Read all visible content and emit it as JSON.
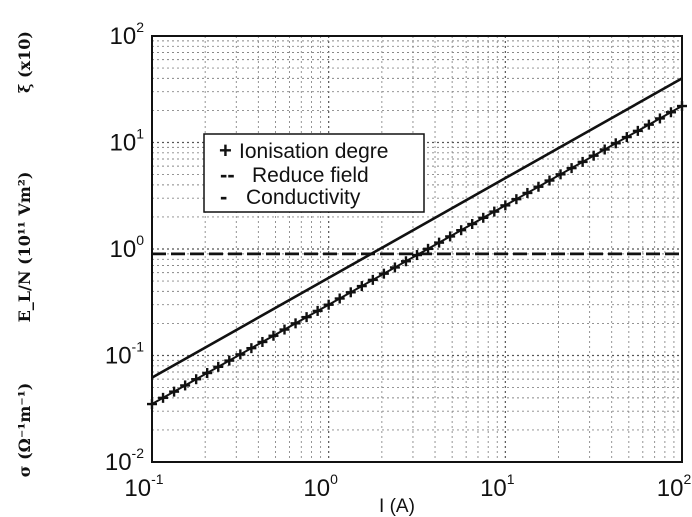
{
  "chart_data": {
    "type": "line",
    "xscale": "log",
    "yscale": "log",
    "xlim": [
      0.1,
      100
    ],
    "ylim": [
      0.01,
      100
    ],
    "grid": true,
    "legend_position": "upper-left inside",
    "xlabel": "I (A)",
    "ylabels": [
      "ξ (x10)",
      "E_L/N (10¹¹ Vm²)",
      "σ (Ω⁻¹m⁻¹)"
    ],
    "x_ticks": [
      {
        "base": "10",
        "exp": "-1"
      },
      {
        "base": "10",
        "exp": "0"
      },
      {
        "base": "10",
        "exp": "1"
      },
      {
        "base": "10",
        "exp": "2"
      }
    ],
    "y_ticks": [
      {
        "base": "10",
        "exp": "-2"
      },
      {
        "base": "10",
        "exp": "-1"
      },
      {
        "base": "10",
        "exp": "0"
      },
      {
        "base": "10",
        "exp": "1"
      },
      {
        "base": "10",
        "exp": "2"
      }
    ],
    "series": [
      {
        "name": "Ionisation degre",
        "style": "plus-markers",
        "x": [
          0.1,
          100
        ],
        "y": [
          0.035,
          22
        ]
      },
      {
        "name": "Reduce field",
        "style": "dashed",
        "x": [
          0.1,
          100
        ],
        "y": [
          0.9,
          0.9
        ]
      },
      {
        "name": "Conductivity",
        "style": "solid",
        "x": [
          0.1,
          100
        ],
        "y": [
          0.062,
          40
        ]
      }
    ],
    "legend": [
      {
        "symbol": "+",
        "label": "Ionisation degre"
      },
      {
        "symbol": "--",
        "label": "Reduce field"
      },
      {
        "symbol": "-",
        "label": "Conductivity"
      }
    ]
  }
}
